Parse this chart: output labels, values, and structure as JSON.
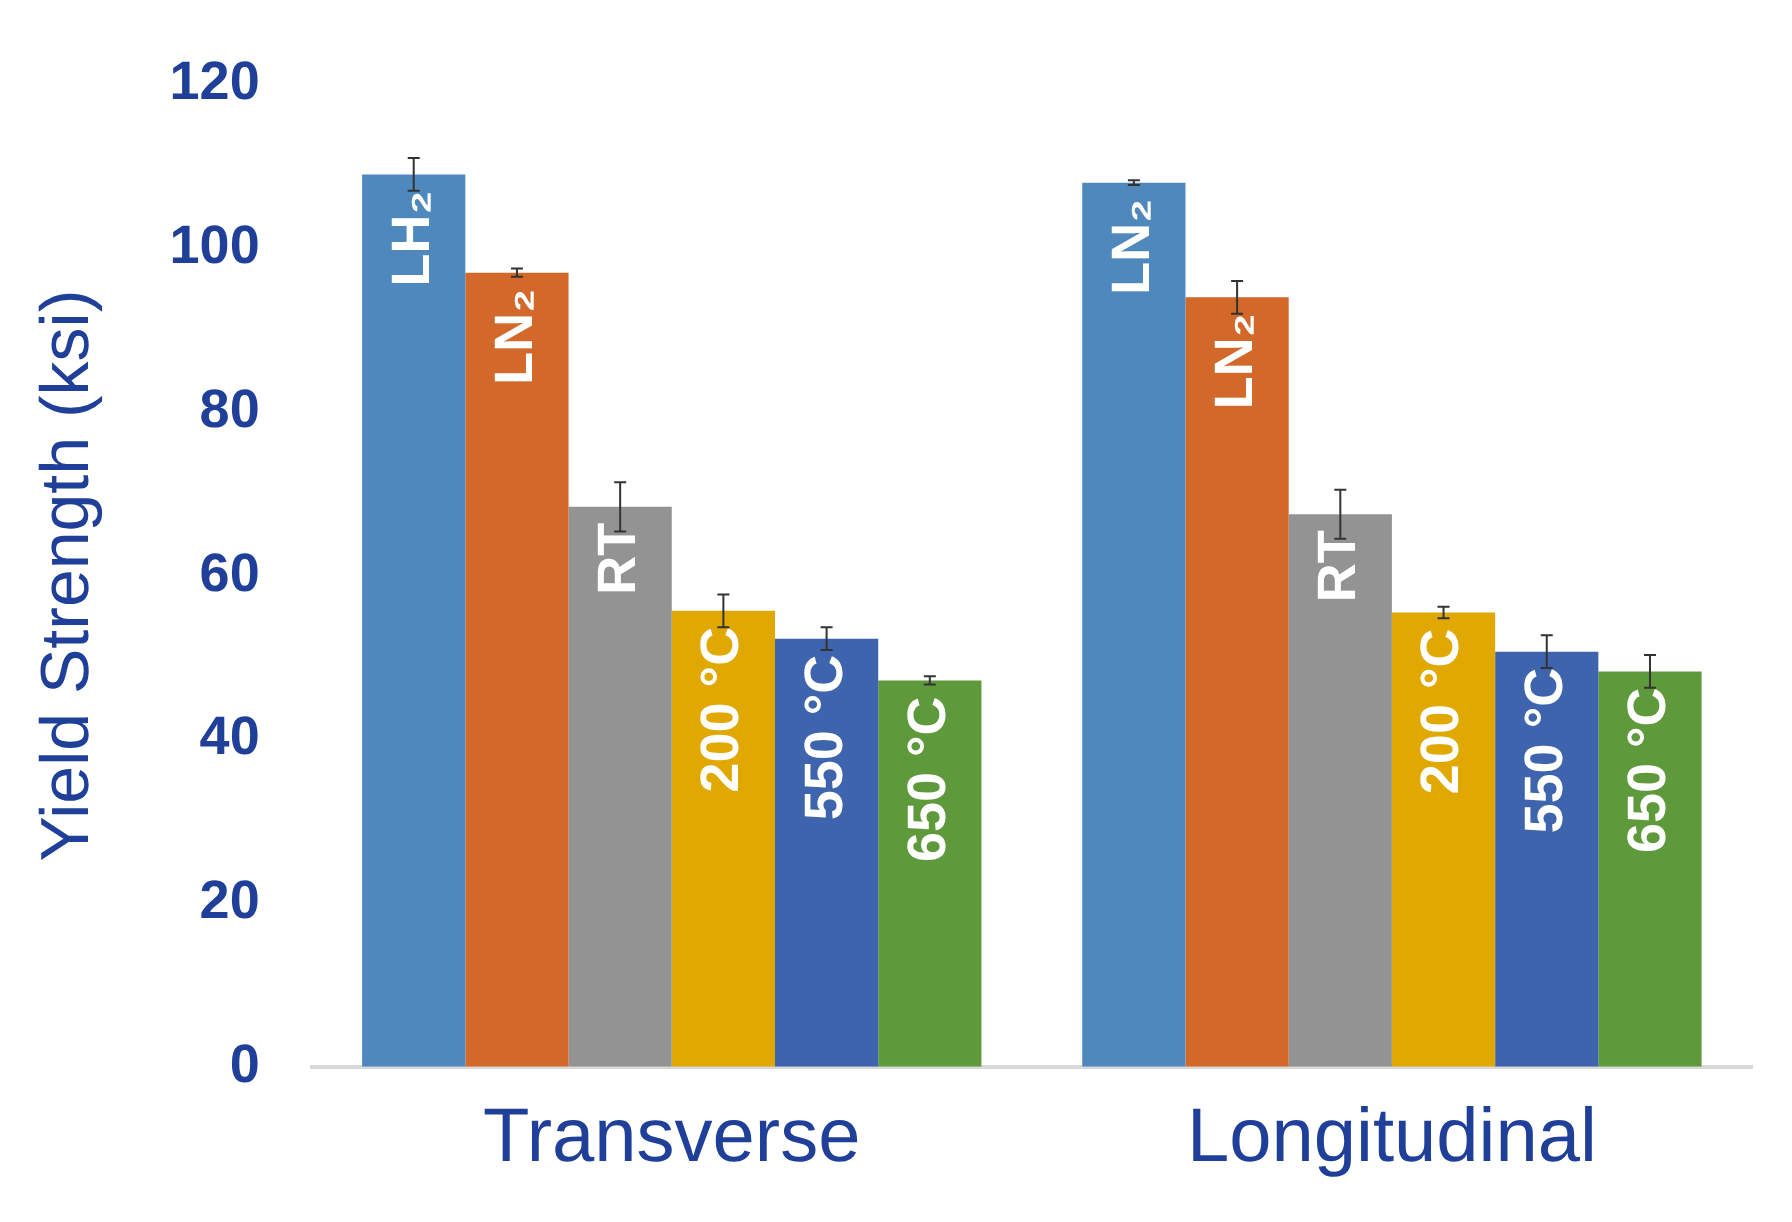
{
  "chart_data": {
    "type": "bar",
    "ylabel": "Yield Strength (ksi)",
    "categories": [
      "Transverse",
      "Longitudinal"
    ],
    "series": [
      {
        "color": "#4f88bd",
        "values": [
          109,
          108
        ],
        "errors": [
          2,
          0.3
        ]
      },
      {
        "color": "#d2692a",
        "values": [
          97,
          94
        ],
        "errors": [
          0.5,
          2
        ]
      },
      {
        "color": "#939393",
        "values": [
          68.4,
          67.5
        ],
        "errors": [
          3,
          3
        ]
      },
      {
        "color": "#e0a800",
        "values": [
          55.7,
          55.5
        ],
        "errors": [
          2,
          0.7
        ]
      },
      {
        "color": "#3d64ad",
        "values": [
          52.3,
          50.7
        ],
        "errors": [
          1.4,
          2
        ]
      },
      {
        "color": "#5e9a3c",
        "values": [
          47.2,
          48.3
        ],
        "errors": [
          0.5,
          2
        ]
      }
    ],
    "annotations": [
      "LH₂",
      "LN₂",
      "RT",
      "200 °C",
      "550 °C",
      "650 °C",
      "LN₂",
      "LN₂",
      "RT",
      "200 °C",
      "550 °C",
      "650 °C"
    ],
    "ylim": [
      0,
      120
    ],
    "yticks": [
      0,
      20,
      40,
      60,
      80,
      100,
      120
    ],
    "grid": false,
    "legend": false
  }
}
